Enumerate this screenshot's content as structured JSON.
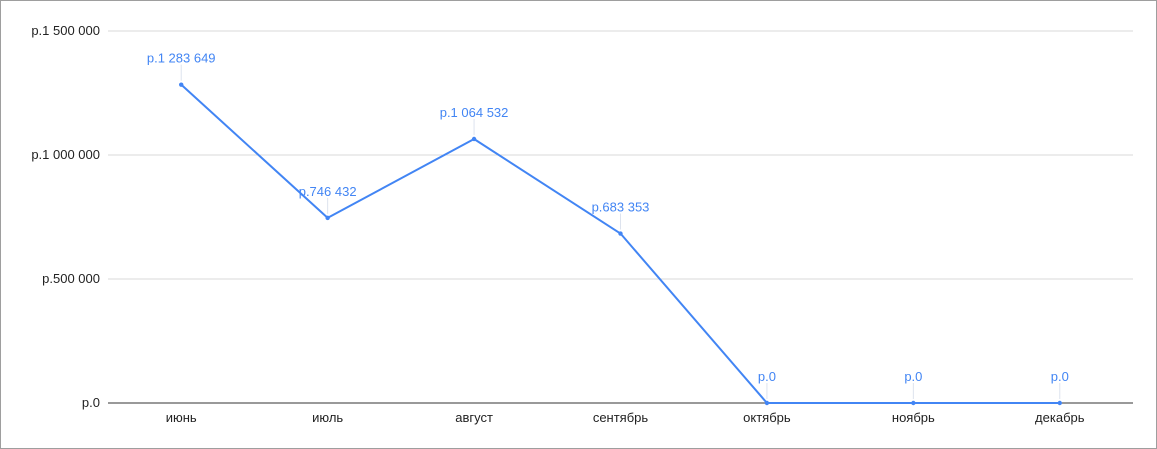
{
  "chart_data": {
    "type": "line",
    "title": "",
    "xlabel": "",
    "ylabel": "",
    "categories": [
      "июнь",
      "июль",
      "август",
      "сентябрь",
      "октябрь",
      "ноябрь",
      "декабрь"
    ],
    "series": [
      {
        "values": [
          1283649,
          746432,
          1064532,
          683353,
          0,
          0,
          0
        ],
        "labels": [
          "р.1 283 649",
          "р.746 432",
          "р.1 064 532",
          "р.683 353",
          "р.0",
          "р.0",
          "р.0"
        ],
        "color": "#4285f4"
      }
    ],
    "ylim": [
      0,
      1500000
    ],
    "yticks": [
      0,
      500000,
      1000000,
      1500000
    ],
    "ytick_labels": [
      "р.0",
      "р.500 000",
      "р.1 000 000",
      "р.1 500 000"
    ],
    "grid": true,
    "data_labels": true,
    "legend": "none"
  }
}
